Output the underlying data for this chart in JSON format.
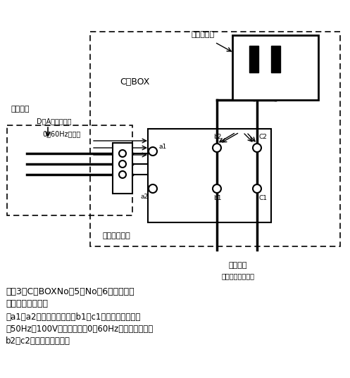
{
  "title": "図－3　C－BOXNo．5，No．6コンセント",
  "title2": "　　　　の仕組み",
  "caption1": "　a1，a2間の電圧に応じ，b1，c1に供給される電力",
  "caption2": "（50Hz，100V）の周波数が0～60Hzに変換されて，",
  "caption3": "b2，c2から出力される。",
  "label_konsento": "コンセント",
  "label_cbox": "C－BOX",
  "label_pasokon": "パソコン",
  "label_da": "D／A変換ボード",
  "label_henkan": "0～60Hzに変換",
  "label_inverter": "インバーター",
  "label_50hz": "５０Ｈｚ",
  "label_ac100v": "（ＡＣ１００Ｖ）",
  "bg_color": "#ffffff",
  "line_color": "#000000"
}
